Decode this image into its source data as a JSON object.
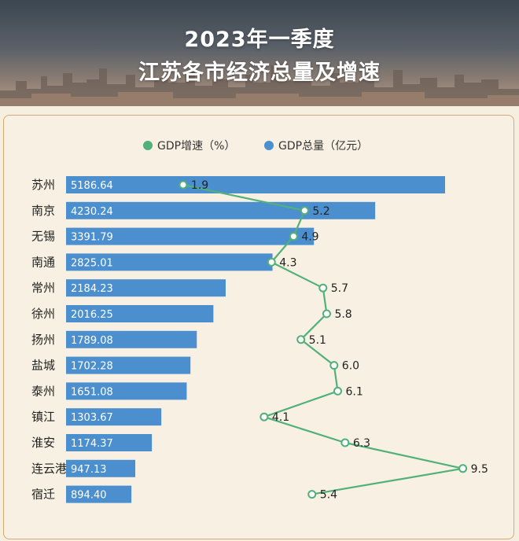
{
  "title_line1": "2023年一季度",
  "title_line2": "江苏各市经济总量及增速",
  "legend": {
    "growth": "GDP增速（%）",
    "gdp": "GDP总量（亿元）"
  },
  "colors": {
    "bar": "#4b8fcf",
    "line": "#52b07a",
    "background": "#f8f1e3",
    "border": "#d7a974"
  },
  "chart_data": {
    "type": "bar",
    "orientation": "horizontal",
    "categories": [
      "苏州",
      "南京",
      "无锡",
      "南通",
      "常州",
      "徐州",
      "扬州",
      "盐城",
      "泰州",
      "镇江",
      "淮安",
      "连云港",
      "宿迁"
    ],
    "series": [
      {
        "name": "GDP总量（亿元）",
        "type": "bar",
        "values": [
          5186.64,
          4230.24,
          3391.79,
          2825.01,
          2184.23,
          2016.25,
          1789.08,
          1702.28,
          1651.08,
          1303.67,
          1174.37,
          947.13,
          894.4
        ],
        "labels": [
          "5186.64",
          "4230.24",
          "3391.79",
          "2825.01",
          "2184.23",
          "2016.25",
          "1789.08",
          "1702.28",
          "1651.08",
          "1303.67",
          "1174.37",
          "947.13",
          "894.40"
        ]
      },
      {
        "name": "GDP增速（%）",
        "type": "line",
        "values": [
          1.9,
          5.2,
          4.9,
          4.3,
          5.7,
          5.8,
          5.1,
          6.0,
          6.1,
          4.1,
          6.3,
          9.5,
          5.4
        ],
        "labels": [
          "1.9",
          "5.2",
          "4.9",
          "4.3",
          "5.7",
          "5.8",
          "5.1",
          "6.0",
          "6.1",
          "4.1",
          "6.3",
          "9.5",
          "5.4"
        ]
      }
    ],
    "legend_position": "top-center",
    "grid": false
  }
}
